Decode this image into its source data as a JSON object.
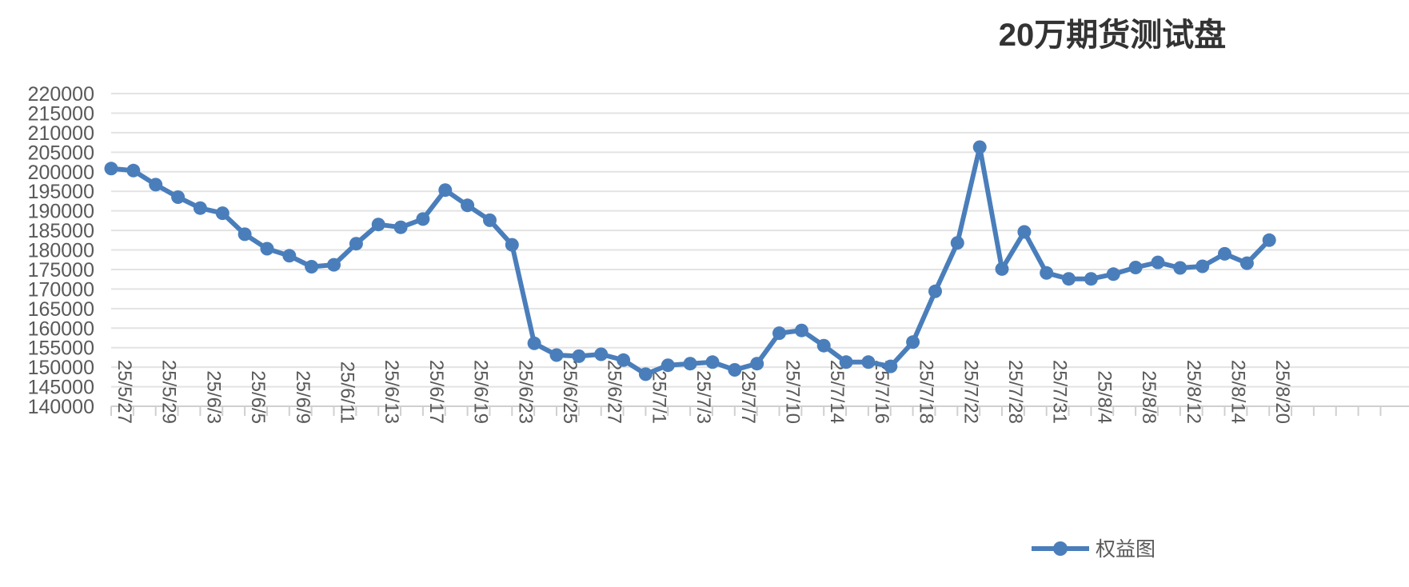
{
  "chart_data": {
    "type": "line",
    "title": "20万期货测试盘",
    "xlabel": "",
    "ylabel": "",
    "ylim": [
      140000,
      220000
    ],
    "y_ticks": [
      140000,
      145000,
      150000,
      155000,
      160000,
      165000,
      170000,
      175000,
      180000,
      185000,
      190000,
      195000,
      200000,
      205000,
      210000,
      215000,
      220000
    ],
    "x_tick_labels": [
      "25/5/27",
      "25/5/29",
      "25/6/3",
      "25/6/5",
      "25/6/9",
      "25/6/11",
      "25/6/13",
      "25/6/17",
      "25/6/19",
      "25/6/23",
      "25/6/25",
      "25/6/27",
      "25/7/1",
      "25/7/3",
      "25/7/7",
      "25/7/10",
      "25/7/14",
      "25/7/16",
      "25/7/18",
      "25/7/22",
      "25/7/28",
      "25/7/31",
      "25/8/4",
      "25/8/8",
      "25/8/12",
      "25/8/14",
      "25/8/20"
    ],
    "x_label_every": 2,
    "category_slots": 58,
    "grid": true,
    "legend_position": "bottom",
    "series": [
      {
        "name": "权益图",
        "color": "#4a7ebb",
        "values": [
          200800,
          200300,
          196700,
          193500,
          190700,
          189400,
          184000,
          180300,
          178500,
          175700,
          176200,
          181600,
          186500,
          185800,
          187900,
          195300,
          191400,
          187600,
          181300,
          156100,
          153100,
          152800,
          153300,
          151800,
          148200,
          150500,
          150900,
          151300,
          149300,
          150900,
          158700,
          159400,
          155500,
          151300,
          151300,
          150200,
          156400,
          169400,
          181800,
          206300,
          175100,
          184600,
          174100,
          172600,
          172600,
          173800,
          175500,
          176800,
          175400,
          175800,
          179000,
          176600,
          182500
        ]
      }
    ]
  }
}
